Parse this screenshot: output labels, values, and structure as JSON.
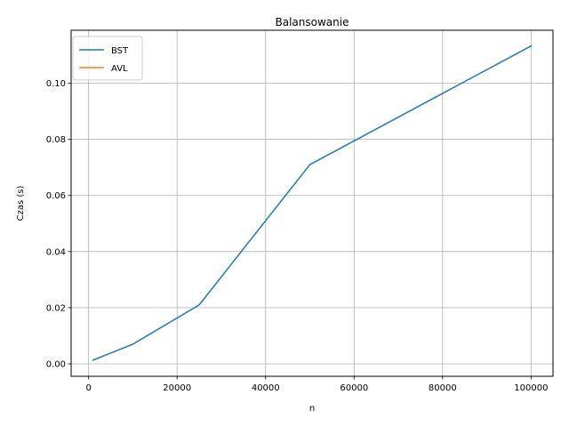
{
  "chart_data": {
    "type": "line",
    "title": "Balansowanie",
    "xlabel": "n",
    "ylabel": "Czas (s)",
    "xlim": [
      -3950,
      104950
    ],
    "ylim": [
      -0.00445,
      0.1189
    ],
    "xticks": [
      0,
      20000,
      40000,
      60000,
      80000,
      100000
    ],
    "xtick_labels": [
      "0",
      "20000",
      "40000",
      "60000",
      "80000",
      "100000"
    ],
    "yticks": [
      0.0,
      0.02,
      0.04,
      0.06,
      0.08,
      0.1
    ],
    "ytick_labels": [
      "0.00",
      "0.02",
      "0.04",
      "0.06",
      "0.08",
      "0.10"
    ],
    "grid": true,
    "legend_position": "top-left",
    "series": [
      {
        "name": "BST",
        "color": "#1f77b4",
        "x": [
          1000,
          10000,
          25000,
          50000,
          100000
        ],
        "y": [
          0.0013,
          0.007,
          0.021,
          0.071,
          0.1133
        ]
      },
      {
        "name": "AVL",
        "color": "#ff7f0e",
        "x": [],
        "y": []
      }
    ]
  }
}
